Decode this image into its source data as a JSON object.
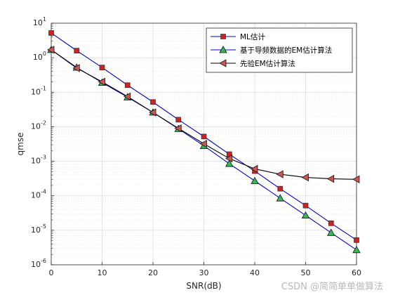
{
  "chart_data": {
    "type": "line",
    "xlabel": "SNR(dB)",
    "ylabel": "qmse",
    "xlim": [
      0,
      60
    ],
    "ylim": [
      1e-06,
      10
    ],
    "yscale": "log",
    "grid": true,
    "legend_position": "top-right",
    "x_ticks": [
      0,
      10,
      20,
      30,
      40,
      50,
      60
    ],
    "y_ticks": [
      {
        "value": 1e-06,
        "base": "10",
        "exp": "-6"
      },
      {
        "value": 1e-05,
        "base": "10",
        "exp": "-5"
      },
      {
        "value": 0.0001,
        "base": "10",
        "exp": "-4"
      },
      {
        "value": 0.001,
        "base": "10",
        "exp": "-3"
      },
      {
        "value": 0.01,
        "base": "10",
        "exp": "-2"
      },
      {
        "value": 0.1,
        "base": "10",
        "exp": "-1"
      },
      {
        "value": 1.0,
        "base": "10",
        "exp": "0"
      },
      {
        "value": 10.0,
        "base": "10",
        "exp": "1"
      }
    ],
    "x": [
      0,
      5,
      10,
      15,
      20,
      25,
      30,
      35,
      40,
      45,
      50,
      55,
      60
    ],
    "series": [
      {
        "name": "ML估计",
        "marker": "square",
        "line_color": "#0000cc",
        "marker_fill": "#cc2222",
        "values": [
          5.2,
          1.6,
          0.52,
          0.16,
          0.052,
          0.016,
          0.0052,
          0.0016,
          0.00052,
          0.00016,
          5.2e-05,
          1.6e-05,
          5.2e-06
        ]
      },
      {
        "name": "基于导频数据的EM估计算法",
        "marker": "triangle-up",
        "line_color": "#0000cc",
        "marker_fill": "#33bb55",
        "values": [
          1.7,
          0.52,
          0.19,
          0.072,
          0.026,
          0.0087,
          0.0028,
          0.00085,
          0.00027,
          8.5e-05,
          2.7e-05,
          8.5e-06,
          2.7e-06
        ]
      },
      {
        "name": "先验EM估计算法",
        "marker": "triangle-left",
        "line_color": "#000000",
        "marker_fill": "#cc5555",
        "values": [
          1.7,
          0.5,
          0.2,
          0.075,
          0.026,
          0.009,
          0.0032,
          0.0012,
          0.0006,
          0.00042,
          0.00034,
          0.00031,
          0.0003
        ]
      }
    ]
  },
  "watermark": "CSDN @简简单单做算法"
}
